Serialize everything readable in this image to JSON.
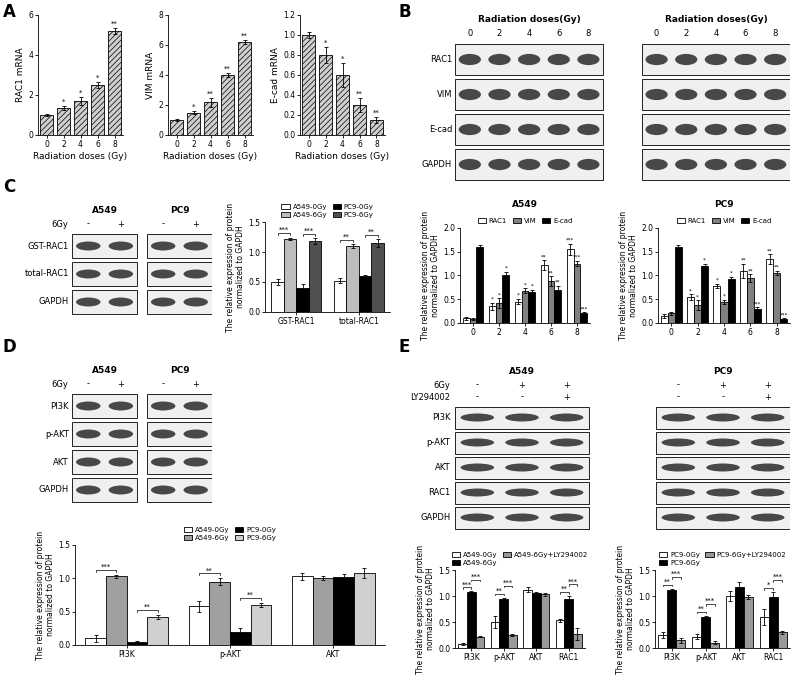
{
  "panels": [
    "A",
    "B",
    "C",
    "D",
    "E"
  ],
  "blots": [
    {
      "groups": [
        "Radiation doses(Gy)",
        "Radiation doses(Gy)"
      ],
      "lanes": [
        "0",
        "2",
        "4",
        "6",
        "8",
        "0",
        "2",
        "4",
        "6",
        "8"
      ],
      "bands": [
        "RAC1",
        "VIM",
        "E-cad",
        "GAPDH"
      ]
    },
    {
      "groups": [
        "A549",
        "PC9"
      ],
      "conditions": [
        {
          "label": "6Gy",
          "values": [
            "-",
            "+",
            "-",
            "+"
          ]
        }
      ],
      "bands": [
        "GST-RAC1",
        "total-RAC1",
        "GAPDH"
      ]
    },
    {
      "groups": [
        "A549",
        "PC9"
      ],
      "conditions": [
        {
          "label": "6Gy",
          "values": [
            "-",
            "+",
            "-",
            "+"
          ]
        }
      ],
      "bands": [
        "PI3K",
        "p-AKT",
        "AKT",
        "GAPDH"
      ]
    },
    {
      "groups": [
        "A549",
        "PC9"
      ],
      "conditions": [
        {
          "label": "6Gy",
          "values": [
            "-",
            "+",
            "+",
            "-",
            "+",
            "+"
          ]
        },
        {
          "label": "LY294002",
          "values": [
            "-",
            "-",
            "+",
            "-",
            "-",
            "+"
          ]
        }
      ],
      "bands": [
        "PI3K",
        "p-AKT",
        "AKT",
        "RAC1",
        "GAPDH"
      ]
    }
  ],
  "chart_data": [
    {
      "type": "bar",
      "xlabel": "Radiation doses (Gy)",
      "ylabel": "RAC1 mRNA",
      "categories": [
        "0",
        "2",
        "4",
        "6",
        "8"
      ],
      "values": [
        1.0,
        1.35,
        1.7,
        2.5,
        5.2
      ],
      "errors": [
        0.05,
        0.1,
        0.2,
        0.15,
        0.15
      ],
      "annotations": [
        null,
        "*",
        "*",
        "*",
        "**"
      ],
      "color": "#cfcfcf",
      "ylim": [
        0,
        6
      ],
      "yticks": [
        0,
        2,
        4,
        6
      ]
    },
    {
      "type": "bar",
      "xlabel": "Radiation doses (Gy)",
      "ylabel": "VIM mRNA",
      "categories": [
        "0",
        "2",
        "4",
        "6",
        "8"
      ],
      "values": [
        1.0,
        1.5,
        2.2,
        4.0,
        6.2
      ],
      "errors": [
        0.05,
        0.1,
        0.3,
        0.15,
        0.15
      ],
      "annotations": [
        null,
        "*",
        "**",
        "**",
        "**"
      ],
      "color": "#cfcfcf",
      "ylim": [
        0,
        8
      ],
      "yticks": [
        0,
        2,
        4,
        6,
        8
      ]
    },
    {
      "type": "bar",
      "xlabel": "Radiation doses (Gy)",
      "ylabel": "E-cad mRNA",
      "categories": [
        "0",
        "2",
        "4",
        "6",
        "8"
      ],
      "values": [
        1.0,
        0.8,
        0.6,
        0.3,
        0.15
      ],
      "errors": [
        0.03,
        0.08,
        0.12,
        0.07,
        0.03
      ],
      "annotations": [
        null,
        "*",
        "*",
        "**",
        "**"
      ],
      "color": "#cfcfcf",
      "ylim": [
        0,
        1.2
      ],
      "yticks": [
        0.0,
        0.2,
        0.4,
        0.6,
        0.8,
        1.0,
        1.2
      ]
    },
    {
      "type": "bar",
      "title": "A549",
      "ylabel": "The relative expression of protein\nnormalized to GAPDH",
      "categories": [
        "0",
        "2",
        "4",
        "6",
        "8"
      ],
      "series": [
        {
          "name": "RAC1",
          "color": "#ffffff",
          "values": [
            0.1,
            0.35,
            0.45,
            1.22,
            1.55
          ],
          "errors": [
            0.03,
            0.08,
            0.06,
            0.1,
            0.12
          ],
          "annotations": [
            null,
            "*",
            "*",
            "**",
            "***"
          ]
        },
        {
          "name": "VIM",
          "color": "#808080",
          "values": [
            0.08,
            0.42,
            0.68,
            0.88,
            1.25
          ],
          "errors": [
            0.02,
            0.1,
            0.05,
            0.1,
            0.06
          ],
          "annotations": [
            null,
            "*",
            "*",
            "**",
            "***"
          ]
        },
        {
          "name": "E-cad",
          "color": "#000000",
          "values": [
            1.6,
            1.02,
            0.65,
            0.7,
            0.2
          ],
          "errors": [
            0.05,
            0.06,
            0.05,
            0.08,
            0.03
          ],
          "annotations": [
            null,
            "*",
            "*",
            "**",
            "***"
          ]
        }
      ],
      "legend": "lower center",
      "ylim": [
        0,
        2.0
      ],
      "yticks": [
        0.0,
        0.5,
        1.0,
        1.5,
        2.0
      ]
    },
    {
      "type": "bar",
      "title": "PC9",
      "ylabel": "The relative expression of protein\nnormalized to GAPDH",
      "categories": [
        "0",
        "2",
        "4",
        "6",
        "8"
      ],
      "series": [
        {
          "name": "RAC1",
          "color": "#ffffff",
          "values": [
            0.15,
            0.55,
            0.78,
            1.1,
            1.35
          ],
          "errors": [
            0.04,
            0.06,
            0.05,
            0.15,
            0.1
          ],
          "annotations": [
            null,
            "*",
            "*",
            "**",
            "**"
          ]
        },
        {
          "name": "VIM",
          "color": "#808080",
          "values": [
            0.2,
            0.38,
            0.45,
            0.95,
            1.05
          ],
          "errors": [
            0.03,
            0.1,
            0.04,
            0.08,
            0.05
          ],
          "annotations": [
            null,
            "*",
            "*",
            "**",
            "**"
          ]
        },
        {
          "name": "E-cad",
          "color": "#000000",
          "values": [
            1.6,
            1.2,
            0.92,
            0.3,
            0.08
          ],
          "errors": [
            0.05,
            0.05,
            0.05,
            0.03,
            0.02
          ],
          "annotations": [
            null,
            "*",
            "*",
            "***",
            "***"
          ]
        }
      ],
      "legend": "lower center",
      "ylim": [
        0,
        2.0
      ],
      "yticks": [
        0.0,
        0.5,
        1.0,
        1.5,
        2.0
      ]
    },
    {
      "type": "bar",
      "ylabel": "The relative expression of protein\nnormalized to GAPDH",
      "categories": [
        "GST-RAC1",
        "total-RAC1"
      ],
      "series": [
        {
          "name": "A549-0Gy",
          "color": "#ffffff",
          "values": [
            0.5,
            0.52
          ],
          "errors": [
            0.05,
            0.04
          ]
        },
        {
          "name": "A549-6Gy",
          "color": "#bdbdbd",
          "values": [
            1.22,
            1.1
          ],
          "errors": [
            0.02,
            0.03
          ]
        },
        {
          "name": "PC9-0Gy",
          "color": "#000000",
          "values": [
            0.4,
            0.6
          ],
          "errors": [
            0.06,
            0.02
          ]
        },
        {
          "name": "PC9-6Gy",
          "color": "#505050",
          "values": [
            1.18,
            1.15
          ],
          "errors": [
            0.05,
            0.06
          ]
        }
      ],
      "annotations": [
        {
          "category": "GST-RAC1",
          "between": [
            "A549-0Gy",
            "A549-6Gy"
          ],
          "text": "***"
        },
        {
          "category": "GST-RAC1",
          "between": [
            "PC9-0Gy",
            "PC9-6Gy"
          ],
          "text": "***"
        },
        {
          "category": "total-RAC1",
          "between": [
            "A549-0Gy",
            "A549-6Gy"
          ],
          "text": "**"
        },
        {
          "category": "total-RAC1",
          "between": [
            "PC9-0Gy",
            "PC9-6Gy"
          ],
          "text": "**"
        }
      ],
      "legend": "lower center",
      "ylim": [
        0,
        1.5
      ],
      "yticks": [
        0.0,
        0.5,
        1.0,
        1.5
      ]
    },
    {
      "type": "bar",
      "ylabel": "The relative expression of protein\nnormalized to GAPDH",
      "categories": [
        "PI3K",
        "p-AKT",
        "AKT"
      ],
      "series": [
        {
          "name": "A549-0Gy",
          "color": "#ffffff",
          "values": [
            0.1,
            0.58,
            1.03
          ],
          "errors": [
            0.05,
            0.08,
            0.05
          ]
        },
        {
          "name": "A549-6Gy",
          "color": "#a0a0a0",
          "values": [
            1.03,
            0.95,
            1.0
          ],
          "errors": [
            0.02,
            0.05,
            0.03
          ]
        },
        {
          "name": "PC9-0Gy",
          "color": "#000000",
          "values": [
            0.05,
            0.2,
            1.02
          ],
          "errors": [
            0.01,
            0.05,
            0.04
          ]
        },
        {
          "name": "PC9-6Gy",
          "color": "#d0d0d0",
          "values": [
            0.42,
            0.6,
            1.08
          ],
          "errors": [
            0.03,
            0.03,
            0.07
          ]
        }
      ],
      "annotations": [
        {
          "category": "PI3K",
          "between": [
            "A549-0Gy",
            "A549-6Gy"
          ],
          "text": "***"
        },
        {
          "category": "PI3K",
          "between": [
            "PC9-0Gy",
            "PC9-6Gy"
          ],
          "text": "**"
        },
        {
          "category": "p-AKT",
          "between": [
            "A549-0Gy",
            "A549-6Gy"
          ],
          "text": "**"
        },
        {
          "category": "p-AKT",
          "between": [
            "PC9-0Gy",
            "PC9-6Gy"
          ],
          "text": "**"
        }
      ],
      "legend": "lower center",
      "ylim": [
        0,
        1.5
      ],
      "yticks": [
        0.0,
        0.5,
        1.0,
        1.5
      ]
    },
    {
      "type": "bar",
      "ylabel": "The relative expression of protein\nnormalized to GAPDH",
      "categories": [
        "PI3K",
        "p-AKT",
        "AKT",
        "RAC1"
      ],
      "series": [
        {
          "name": "A549-0Gy",
          "color": "#ffffff",
          "values": [
            0.08,
            0.5,
            1.12,
            0.53
          ],
          "errors": [
            0.02,
            0.12,
            0.05,
            0.03
          ]
        },
        {
          "name": "A549-6Gy",
          "color": "#000000",
          "values": [
            1.08,
            0.95,
            1.05,
            0.95
          ],
          "errors": [
            0.01,
            0.02,
            0.02,
            0.05
          ]
        },
        {
          "name": "A549-6Gy+LY294002",
          "color": "#999999",
          "values": [
            0.22,
            0.25,
            1.03,
            0.27
          ],
          "errors": [
            0.01,
            0.01,
            0.03,
            0.12
          ]
        }
      ],
      "annotations": [
        {
          "category": "PI3K",
          "between": [
            "A549-0Gy",
            "A549-6Gy"
          ],
          "text": "***"
        },
        {
          "category": "PI3K",
          "between": [
            "A549-6Gy",
            "A549-6Gy+LY294002"
          ],
          "text": "***"
        },
        {
          "category": "p-AKT",
          "between": [
            "A549-0Gy",
            "A549-6Gy"
          ],
          "text": "**"
        },
        {
          "category": "p-AKT",
          "between": [
            "A549-6Gy",
            "A549-6Gy+LY294002"
          ],
          "text": "***"
        },
        {
          "category": "RAC1",
          "between": [
            "A549-0Gy",
            "A549-6Gy"
          ],
          "text": "**"
        },
        {
          "category": "RAC1",
          "between": [
            "A549-6Gy",
            "A549-6Gy+LY294002"
          ],
          "text": "***"
        }
      ],
      "legend": "lower center",
      "ylim": [
        0,
        1.5
      ],
      "yticks": [
        0.0,
        0.5,
        1.0,
        1.5
      ]
    },
    {
      "type": "bar",
      "ylabel": "The relative expression of protein\nnormalized to GAPDH",
      "categories": [
        "PI3K",
        "p-AKT",
        "AKT",
        "RAC1"
      ],
      "series": [
        {
          "name": "PC9-0Gy",
          "color": "#ffffff",
          "values": [
            0.25,
            0.22,
            1.0,
            0.6
          ],
          "errors": [
            0.05,
            0.05,
            0.1,
            0.15
          ]
        },
        {
          "name": "PC9-6Gy",
          "color": "#000000",
          "values": [
            1.12,
            0.6,
            1.18,
            0.98
          ],
          "errors": [
            0.02,
            0.02,
            0.08,
            0.1
          ]
        },
        {
          "name": "PC9-6Gy+LY294002",
          "color": "#999999",
          "values": [
            0.15,
            0.1,
            0.98,
            0.3
          ],
          "errors": [
            0.05,
            0.03,
            0.03,
            0.03
          ]
        }
      ],
      "annotations": [
        {
          "category": "PI3K",
          "between": [
            "PC9-0Gy",
            "PC9-6Gy"
          ],
          "text": "**"
        },
        {
          "category": "PI3K",
          "between": [
            "PC9-6Gy",
            "PC9-6Gy+LY294002"
          ],
          "text": "***"
        },
        {
          "category": "p-AKT",
          "between": [
            "PC9-0Gy",
            "PC9-6Gy"
          ],
          "text": "**"
        },
        {
          "category": "p-AKT",
          "between": [
            "PC9-6Gy",
            "PC9-6Gy+LY294002"
          ],
          "text": "***"
        },
        {
          "category": "RAC1",
          "between": [
            "PC9-0Gy",
            "PC9-6Gy"
          ],
          "text": "*"
        },
        {
          "category": "RAC1",
          "between": [
            "PC9-6Gy",
            "PC9-6Gy+LY294002"
          ],
          "text": "***"
        }
      ],
      "legend": "lower center",
      "ylim": [
        0,
        1.5
      ],
      "yticks": [
        0.0,
        0.5,
        1.0,
        1.5
      ]
    }
  ]
}
